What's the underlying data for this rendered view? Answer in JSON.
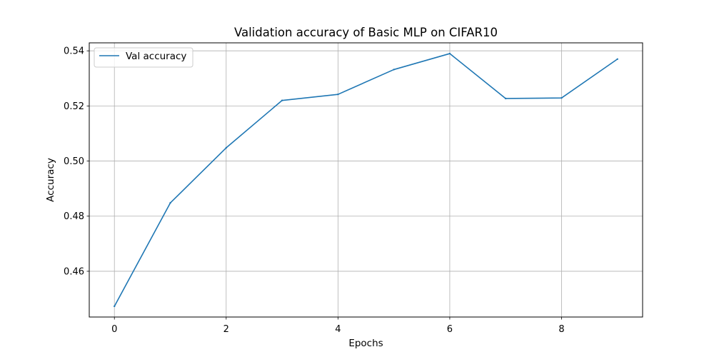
{
  "chart_data": {
    "type": "line",
    "title": "Validation accuracy of Basic MLP on CIFAR10",
    "xlabel": "Epochs",
    "ylabel": "Accuracy",
    "xlim": [
      -0.45,
      9.45
    ],
    "ylim": [
      0.4434,
      0.5429
    ],
    "xticks": [
      0,
      2,
      4,
      6,
      8
    ],
    "xtick_labels": [
      "0",
      "2",
      "4",
      "6",
      "8"
    ],
    "yticks": [
      0.46,
      0.48,
      0.5,
      0.52,
      0.54
    ],
    "ytick_labels": [
      "0.46",
      "0.48",
      "0.50",
      "0.52",
      "0.54"
    ],
    "grid": true,
    "legend_position": "upper-left",
    "series": [
      {
        "name": "Val accuracy",
        "color": "#1f77b4",
        "x": [
          0,
          1,
          2,
          3,
          4,
          5,
          6,
          7,
          8,
          9
        ],
        "y": [
          0.4473,
          0.4848,
          0.5048,
          0.522,
          0.5242,
          0.5332,
          0.539,
          0.5227,
          0.5229,
          0.537
        ]
      }
    ]
  }
}
